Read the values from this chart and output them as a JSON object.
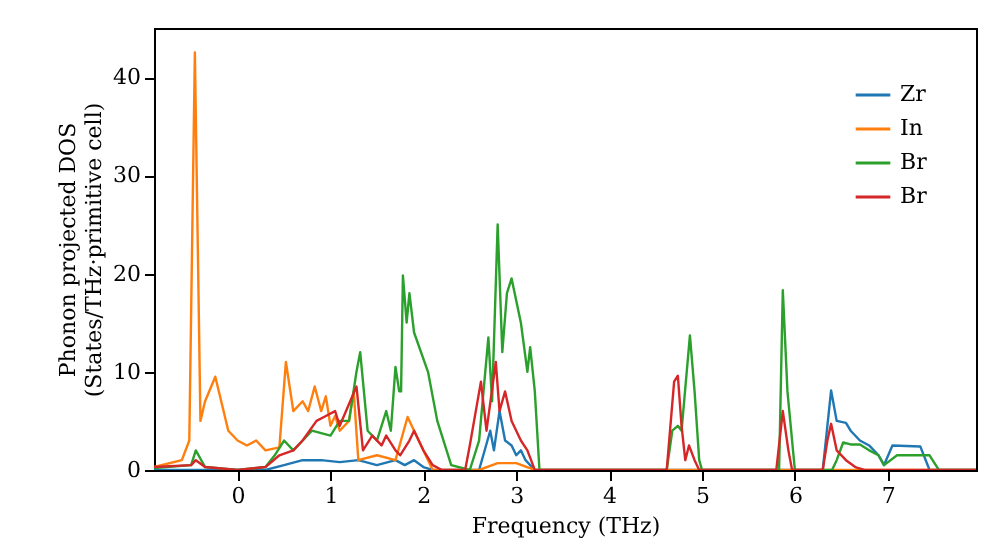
{
  "chart_data": {
    "type": "line",
    "xlabel": "Frequency (THz)",
    "ylabel": "Phonon projected DOS\n(States/THz·primitive cell)",
    "xlim": [
      -0.9,
      7.95
    ],
    "ylim": [
      0,
      45
    ],
    "xticks": [
      0,
      1,
      2,
      3,
      4,
      5,
      6,
      7
    ],
    "yticks": [
      0,
      10,
      20,
      30,
      40
    ],
    "grid": false,
    "legend": "top right",
    "marker": "none",
    "line_style": "solid",
    "series": [
      {
        "name": "Zr",
        "color": "#1f77b4",
        "x": [
          -0.9,
          0.3,
          0.5,
          0.7,
          0.9,
          1.1,
          1.3,
          1.5,
          1.7,
          1.8,
          1.9,
          2.0,
          2.1,
          2.6,
          2.72,
          2.76,
          2.82,
          2.88,
          2.95,
          3.0,
          3.05,
          3.1,
          3.2,
          6.3,
          6.39,
          6.45,
          6.55,
          6.6,
          6.7,
          6.8,
          6.9,
          6.96,
          7.05,
          7.35,
          7.45,
          7.95
        ],
        "values": [
          0,
          0,
          0.5,
          1,
          1,
          0.8,
          1,
          0.5,
          1,
          0.5,
          1,
          0.3,
          0,
          0,
          4,
          2,
          6,
          3,
          2.5,
          1.5,
          2,
          1,
          0,
          0,
          8.1,
          5,
          4.8,
          4,
          3,
          2.5,
          1.5,
          0.5,
          2.5,
          2.4,
          0,
          0
        ]
      },
      {
        "name": "In",
        "color": "#ff7f0e",
        "x": [
          -0.9,
          -0.6,
          -0.52,
          -0.46,
          -0.4,
          -0.35,
          -0.24,
          -0.1,
          0.0,
          0.1,
          0.2,
          0.3,
          0.45,
          0.52,
          0.6,
          0.7,
          0.76,
          0.83,
          0.9,
          0.95,
          1.0,
          1.05,
          1.1,
          1.2,
          1.25,
          1.3,
          1.5,
          1.7,
          1.83,
          1.95,
          2.1,
          2.6,
          2.8,
          3.0,
          3.2,
          7.95
        ],
        "values": [
          0.3,
          1,
          3,
          42.5,
          5,
          7,
          9.5,
          4,
          3,
          2.5,
          3,
          2,
          2.3,
          11,
          6,
          7,
          6,
          8.5,
          6,
          7.5,
          4.5,
          5.5,
          4,
          5,
          8,
          1,
          1.5,
          1,
          5.4,
          3,
          0,
          0,
          0.7,
          0.7,
          0,
          0
        ]
      },
      {
        "name": "Br",
        "color": "#2ca02c",
        "x": [
          -0.9,
          -0.5,
          -0.45,
          -0.35,
          0.0,
          0.3,
          0.4,
          0.5,
          0.6,
          0.8,
          1.0,
          1.1,
          1.2,
          1.28,
          1.32,
          1.4,
          1.5,
          1.6,
          1.65,
          1.7,
          1.74,
          1.76,
          1.78,
          1.82,
          1.85,
          1.9,
          2.05,
          2.15,
          2.3,
          2.5,
          2.6,
          2.7,
          2.74,
          2.8,
          2.85,
          2.9,
          2.95,
          3.05,
          3.12,
          3.15,
          3.2,
          3.25,
          4.62,
          4.68,
          4.74,
          4.78,
          4.87,
          4.92,
          4.97,
          5.0,
          5.83,
          5.87,
          5.92,
          5.97,
          6.0,
          6.4,
          6.45,
          6.52,
          6.6,
          6.7,
          6.8,
          6.9,
          6.96,
          7.1,
          7.45,
          7.55,
          7.95
        ],
        "values": [
          0.2,
          0.5,
          2,
          0.3,
          0,
          0.3,
          1.5,
          3,
          2,
          4,
          3.5,
          5,
          5,
          10,
          12,
          4,
          3,
          6,
          4,
          10.5,
          8,
          8,
          19.8,
          15,
          18,
          14,
          10,
          5,
          0.5,
          0,
          3,
          13.5,
          7,
          25,
          12,
          18,
          19.5,
          15,
          10,
          12.5,
          8,
          0,
          0,
          4,
          4.5,
          4,
          13.7,
          8,
          1,
          0,
          0,
          18.3,
          8,
          3,
          0,
          0,
          1,
          2.8,
          2.6,
          2.6,
          2,
          1.5,
          0.5,
          1.5,
          1.5,
          0,
          0
        ]
      },
      {
        "name": "Br",
        "color": "#d62728",
        "x": [
          -0.9,
          -0.5,
          -0.45,
          -0.35,
          0.0,
          0.3,
          0.45,
          0.6,
          0.7,
          0.85,
          0.95,
          1.05,
          1.1,
          1.28,
          1.35,
          1.45,
          1.55,
          1.6,
          1.7,
          1.75,
          1.85,
          1.9,
          2.0,
          2.1,
          2.2,
          2.45,
          2.5,
          2.62,
          2.68,
          2.78,
          2.82,
          2.88,
          2.95,
          3.05,
          3.12,
          3.2,
          4.62,
          4.7,
          4.74,
          4.78,
          4.82,
          4.86,
          4.92,
          4.97,
          5.8,
          5.87,
          5.93,
          5.97,
          6.3,
          6.35,
          6.39,
          6.45,
          6.55,
          6.65,
          6.75,
          7.0,
          7.95
        ],
        "values": [
          0.3,
          0.5,
          1,
          0.3,
          0,
          0.3,
          1.5,
          2,
          3,
          5,
          5.5,
          6,
          4.5,
          8.5,
          2,
          3.5,
          2.5,
          3.5,
          2,
          1.5,
          3,
          4,
          2,
          0.5,
          0,
          0,
          2.5,
          9,
          4,
          11,
          6,
          8,
          5,
          3,
          2,
          0,
          0,
          9,
          9.6,
          4.5,
          1,
          2.5,
          1,
          0,
          0,
          6,
          2,
          0,
          0,
          3,
          4.7,
          2,
          1,
          0.3,
          0,
          0,
          0
        ]
      }
    ]
  }
}
